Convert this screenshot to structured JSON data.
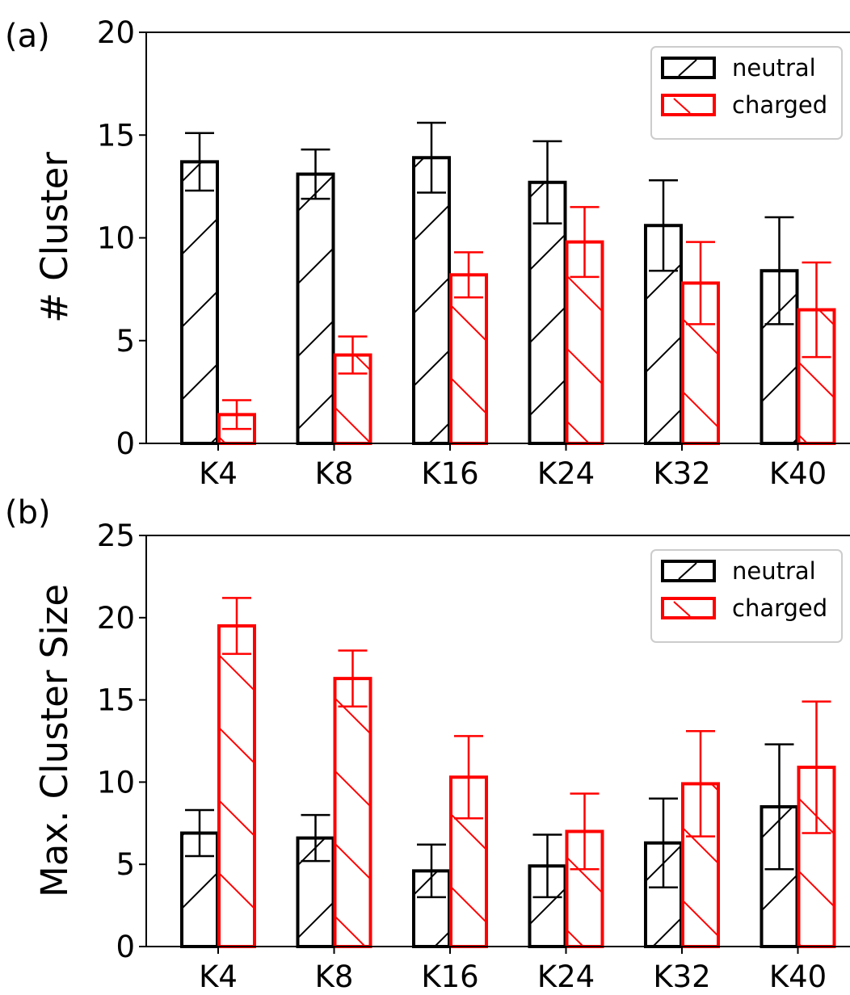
{
  "chart_data": [
    {
      "type": "bar",
      "panel_tag": "(a)",
      "ylabel": "# Cluster",
      "ylim": [
        0,
        20
      ],
      "yticks": [
        0,
        5,
        10,
        15,
        20
      ],
      "categories": [
        "K4",
        "K8",
        "K16",
        "K24",
        "K32",
        "K40"
      ],
      "series": [
        {
          "name": "neutral",
          "color": "#000000",
          "hatch": "forward-diagonal",
          "values": [
            13.7,
            13.1,
            13.9,
            12.7,
            10.6,
            8.4
          ],
          "errors": [
            1.4,
            1.2,
            1.7,
            2.0,
            2.2,
            2.6
          ]
        },
        {
          "name": "charged",
          "color": "#ff0000",
          "hatch": "back-diagonal",
          "values": [
            1.4,
            4.3,
            8.2,
            9.8,
            7.8,
            6.5
          ],
          "errors": [
            0.7,
            0.9,
            1.1,
            1.7,
            2.0,
            2.3
          ]
        }
      ],
      "legend": {
        "position": "top-right",
        "entries": [
          "neutral",
          "charged"
        ]
      }
    },
    {
      "type": "bar",
      "panel_tag": "(b)",
      "ylabel": "Max. Cluster Size",
      "ylim": [
        0,
        25
      ],
      "yticks": [
        0,
        5,
        10,
        15,
        20,
        25
      ],
      "categories": [
        "K4",
        "K8",
        "K16",
        "K24",
        "K32",
        "K40"
      ],
      "series": [
        {
          "name": "neutral",
          "color": "#000000",
          "hatch": "forward-diagonal",
          "values": [
            6.9,
            6.6,
            4.6,
            4.9,
            6.3,
            8.5
          ],
          "errors": [
            1.4,
            1.4,
            1.6,
            1.9,
            2.7,
            3.8
          ]
        },
        {
          "name": "charged",
          "color": "#ff0000",
          "hatch": "back-diagonal",
          "values": [
            19.5,
            16.3,
            10.3,
            7.0,
            9.9,
            10.9
          ],
          "errors": [
            1.7,
            1.7,
            2.5,
            2.3,
            3.2,
            4.0
          ]
        }
      ],
      "legend": {
        "position": "top-right",
        "entries": [
          "neutral",
          "charged"
        ]
      }
    }
  ]
}
